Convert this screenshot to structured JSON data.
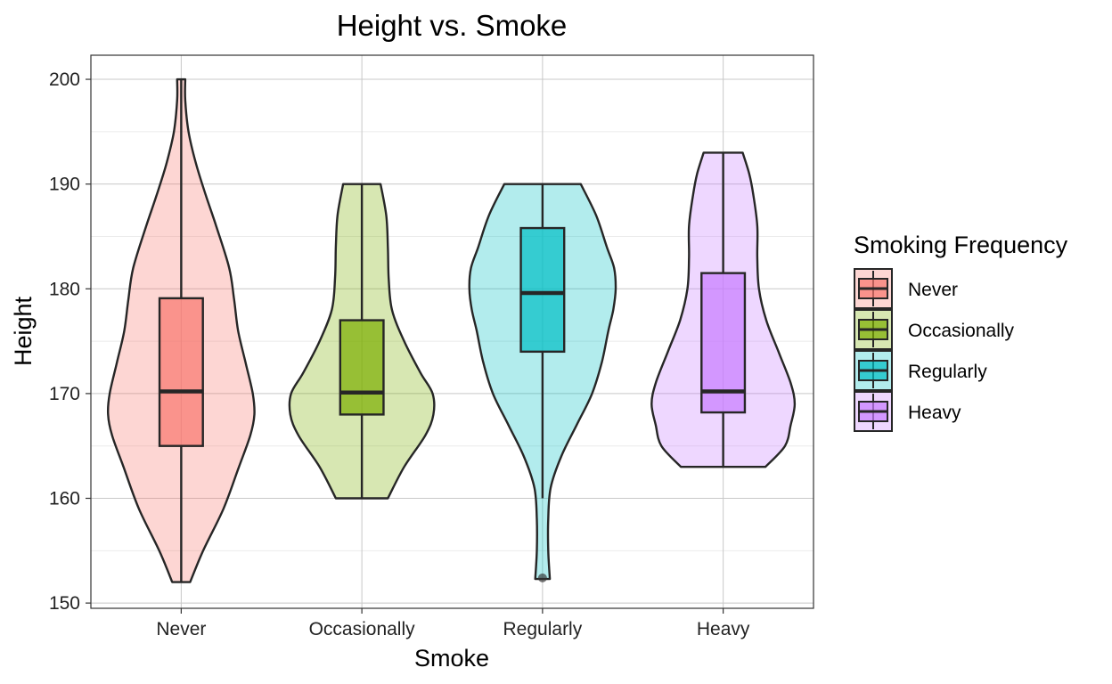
{
  "colors": {
    "Never": "#F8766D",
    "Occasionally": "#7CAE00",
    "Regularly": "#00BFC4",
    "Heavy": "#C77CFF",
    "outline": "#262626",
    "grid_major": "#c8c8c8",
    "grid_minor": "#ebebeb"
  },
  "chart_data": {
    "type": "violin",
    "title": "Height vs. Smoke",
    "xlabel": "Smoke",
    "ylabel": "Height",
    "categories": [
      "Never",
      "Occasionally",
      "Regularly",
      "Heavy"
    ],
    "ylim": [
      149.5,
      202.3
    ],
    "yticks": [
      150,
      160,
      170,
      180,
      190,
      200
    ],
    "legend": {
      "title": "Smoking Frequency",
      "position": "right",
      "items": [
        "Never",
        "Occasionally",
        "Regularly",
        "Heavy"
      ]
    },
    "box_stats": [
      {
        "category": "Never",
        "min": 152,
        "q1": 165,
        "median": 170.2,
        "q3": 179.1,
        "max": 200,
        "outliers": []
      },
      {
        "category": "Occasionally",
        "min": 160,
        "q1": 168,
        "median": 170.1,
        "q3": 177,
        "max": 190,
        "outliers": []
      },
      {
        "category": "Regularly",
        "min": 160,
        "q1": 174,
        "median": 179.6,
        "q3": 185.8,
        "max": 190,
        "outliers": [
          152.4
        ]
      },
      {
        "category": "Heavy",
        "min": 163,
        "q1": 168.2,
        "median": 170.2,
        "q3": 181.5,
        "max": 193,
        "outliers": []
      }
    ],
    "violins": [
      {
        "category": "Never",
        "profile": [
          [
            152,
            0.11
          ],
          [
            155,
            0.27
          ],
          [
            159,
            0.52
          ],
          [
            163,
            0.71
          ],
          [
            166,
            0.85
          ],
          [
            168,
            0.9
          ],
          [
            170,
            0.88
          ],
          [
            173,
            0.79
          ],
          [
            176,
            0.7
          ],
          [
            179,
            0.65
          ],
          [
            182,
            0.59
          ],
          [
            186,
            0.43
          ],
          [
            189,
            0.3
          ],
          [
            192,
            0.18
          ],
          [
            195,
            0.09
          ],
          [
            198,
            0.05
          ],
          [
            200,
            0.05
          ]
        ]
      },
      {
        "category": "Occasionally",
        "profile": [
          [
            160,
            0.32
          ],
          [
            163,
            0.52
          ],
          [
            166,
            0.78
          ],
          [
            168,
            0.88
          ],
          [
            170,
            0.87
          ],
          [
            172,
            0.72
          ],
          [
            175,
            0.52
          ],
          [
            178,
            0.37
          ],
          [
            181,
            0.33
          ],
          [
            184,
            0.32
          ],
          [
            187,
            0.3
          ],
          [
            190,
            0.23
          ]
        ]
      },
      {
        "category": "Regularly",
        "profile": [
          [
            152.3,
            0.09
          ],
          [
            155,
            0.07
          ],
          [
            158,
            0.07
          ],
          [
            161,
            0.1
          ],
          [
            164,
            0.23
          ],
          [
            167,
            0.42
          ],
          [
            170,
            0.61
          ],
          [
            173,
            0.73
          ],
          [
            176,
            0.81
          ],
          [
            178,
            0.87
          ],
          [
            180,
            0.9
          ],
          [
            182,
            0.88
          ],
          [
            184,
            0.79
          ],
          [
            187,
            0.66
          ],
          [
            190,
            0.47
          ]
        ]
      },
      {
        "category": "Heavy",
        "profile": [
          [
            163,
            0.52
          ],
          [
            165,
            0.76
          ],
          [
            167,
            0.83
          ],
          [
            169,
            0.88
          ],
          [
            171,
            0.83
          ],
          [
            174,
            0.68
          ],
          [
            177,
            0.53
          ],
          [
            180,
            0.44
          ],
          [
            183,
            0.42
          ],
          [
            186,
            0.42
          ],
          [
            189,
            0.37
          ],
          [
            191,
            0.32
          ],
          [
            193,
            0.24
          ]
        ]
      }
    ]
  }
}
